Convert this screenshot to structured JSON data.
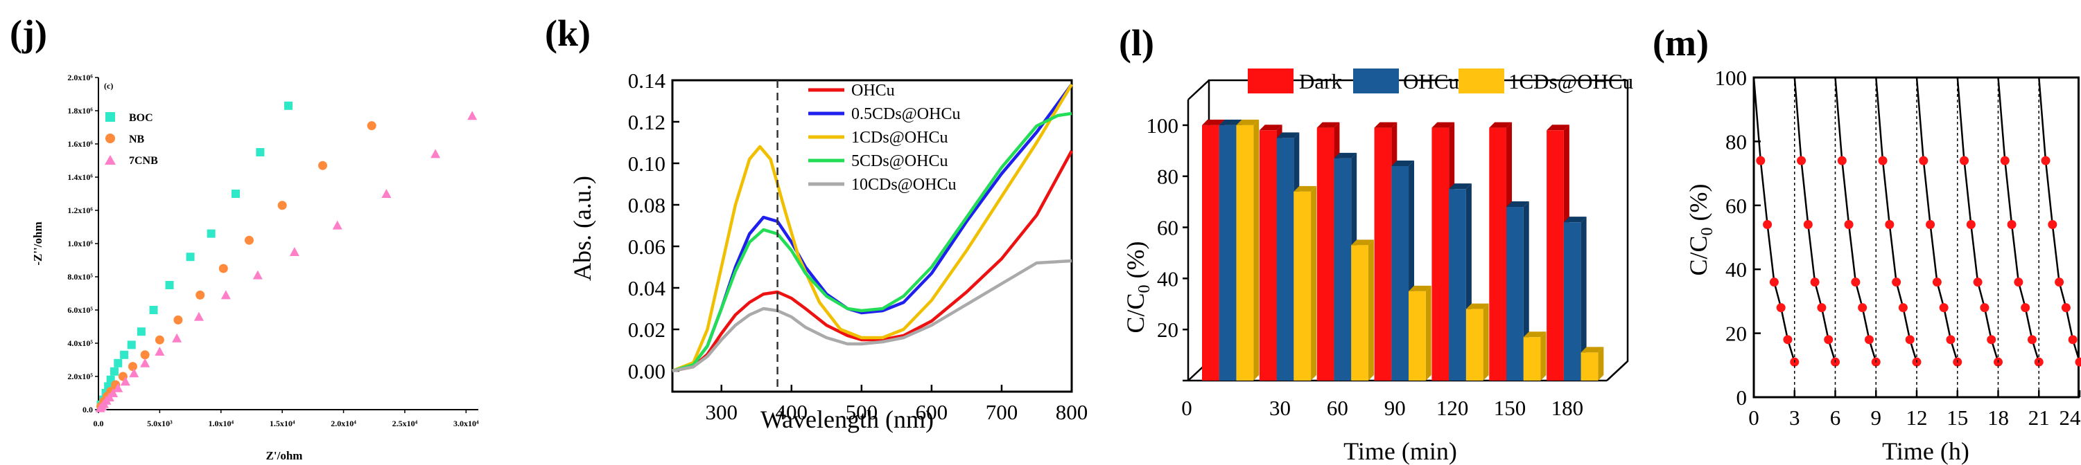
{
  "colors": {
    "cyan": "#2ee8c8",
    "orange": "#ff8a3c",
    "pink": "#ff7ec8",
    "red": "#ee1111",
    "blue": "#2020ee",
    "gold": "#f0c000",
    "green": "#22dd55",
    "gray": "#aaaaaa",
    "darkblue": "#1a5a96",
    "yellow": "#ffc20e",
    "bar_red": "#ff1010",
    "marker_red": "#ff1515"
  },
  "chart_data": [
    {
      "id": "j",
      "panel_label": "(j)",
      "inner_label": "(c)",
      "type": "scatter",
      "xlabel": "Z'/ohm",
      "ylabel": "-Z''/ohm",
      "xlim": [
        0,
        31000
      ],
      "ylim": [
        0,
        2000000
      ],
      "x_tick_values": [
        0,
        5000,
        10000,
        15000,
        20000,
        25000,
        30000
      ],
      "x_tick_labels": [
        "0.0",
        "5.0x10³",
        "1.0x10⁴",
        "1.5x10⁴",
        "2.0x10⁴",
        "2.5x10⁴",
        "3.0x10⁴"
      ],
      "y_tick_values": [
        0,
        200000,
        400000,
        600000,
        800000,
        1000000,
        1200000,
        1400000,
        1600000,
        1800000,
        2000000
      ],
      "y_tick_labels": [
        "0.0",
        "2.0x10⁵",
        "4.0x10⁵",
        "6.0x10⁵",
        "8.0x10⁵",
        "1.0x10⁶",
        "1.2x10⁶",
        "1.4x10⁶",
        "1.6x10⁶",
        "1.8x10⁶",
        "2.0x10⁶"
      ],
      "series": [
        {
          "name": "BOC",
          "color": "cyan",
          "marker": "square",
          "x": [
            200,
            400,
            600,
            800,
            1000,
            1300,
            1600,
            2100,
            2700,
            3500,
            4500,
            5800,
            7500,
            9200,
            11200,
            13200,
            15500
          ],
          "y": [
            30000,
            60000,
            100000,
            140000,
            180000,
            230000,
            280000,
            330000,
            390000,
            470000,
            600000,
            750000,
            920000,
            1060000,
            1300000,
            1550000,
            1830000
          ]
        },
        {
          "name": "NB",
          "color": "orange",
          "marker": "circle",
          "x": [
            200,
            450,
            700,
            1000,
            1400,
            2000,
            2800,
            3800,
            5000,
            6500,
            8300,
            10200,
            12300,
            15000,
            18300,
            22300
          ],
          "y": [
            20000,
            50000,
            80000,
            110000,
            150000,
            200000,
            260000,
            330000,
            420000,
            540000,
            690000,
            850000,
            1020000,
            1230000,
            1470000,
            1710000
          ]
        },
        {
          "name": "7CNB",
          "color": "pink",
          "marker": "triangle",
          "x": [
            150,
            300,
            450,
            650,
            900,
            1200,
            1600,
            2200,
            2900,
            3800,
            5000,
            6400,
            8200,
            10400,
            13000,
            16000,
            19500,
            23500,
            27500,
            30500
          ],
          "y": [
            10000,
            20000,
            35000,
            55000,
            75000,
            100000,
            130000,
            170000,
            220000,
            280000,
            350000,
            430000,
            560000,
            690000,
            810000,
            950000,
            1110000,
            1300000,
            1540000,
            1770000
          ]
        }
      ]
    },
    {
      "id": "k",
      "panel_label": "(k)",
      "type": "line",
      "xlabel": "Wavelength (nm)",
      "ylabel": "Abs. (a.u.)",
      "xlim": [
        230,
        800
      ],
      "ylim": [
        -0.01,
        0.14
      ],
      "x_ticks": [
        300,
        400,
        500,
        600,
        700,
        800
      ],
      "y_ticks": [
        0.0,
        0.02,
        0.04,
        0.06,
        0.08,
        0.1,
        0.12,
        0.14
      ],
      "y_tick_labels": [
        "0.00",
        "0.02",
        "0.04",
        "0.06",
        "0.08",
        "0.10",
        "0.12",
        "0.14"
      ],
      "vline_x": 380,
      "series": [
        {
          "name": "OHCu",
          "color": "red",
          "x": [
            230,
            260,
            280,
            300,
            320,
            340,
            360,
            380,
            400,
            420,
            450,
            480,
            500,
            530,
            560,
            600,
            650,
            700,
            750,
            800
          ],
          "y": [
            0.0,
            0.002,
            0.008,
            0.018,
            0.027,
            0.033,
            0.037,
            0.038,
            0.035,
            0.03,
            0.022,
            0.017,
            0.015,
            0.015,
            0.017,
            0.024,
            0.038,
            0.054,
            0.075,
            0.106
          ]
        },
        {
          "name": "0.5CDs@OHCu",
          "color": "blue",
          "x": [
            230,
            260,
            280,
            300,
            320,
            340,
            360,
            380,
            400,
            420,
            450,
            480,
            500,
            530,
            560,
            600,
            650,
            700,
            750,
            800
          ],
          "y": [
            0.0,
            0.003,
            0.012,
            0.03,
            0.05,
            0.066,
            0.074,
            0.072,
            0.062,
            0.05,
            0.037,
            0.03,
            0.028,
            0.029,
            0.033,
            0.047,
            0.072,
            0.095,
            0.115,
            0.138
          ]
        },
        {
          "name": "1CDs@OHCu",
          "color": "gold",
          "x": [
            230,
            260,
            280,
            300,
            320,
            340,
            355,
            370,
            390,
            410,
            440,
            470,
            500,
            530,
            560,
            600,
            650,
            700,
            750,
            800
          ],
          "y": [
            0.0,
            0.004,
            0.02,
            0.05,
            0.08,
            0.102,
            0.108,
            0.102,
            0.078,
            0.055,
            0.033,
            0.02,
            0.016,
            0.016,
            0.02,
            0.034,
            0.058,
            0.084,
            0.11,
            0.138
          ]
        },
        {
          "name": "5CDs@OHCu",
          "color": "green",
          "x": [
            230,
            260,
            280,
            300,
            320,
            340,
            360,
            380,
            400,
            420,
            450,
            480,
            500,
            530,
            560,
            600,
            650,
            700,
            750,
            780,
            800
          ],
          "y": [
            0.0,
            0.003,
            0.012,
            0.03,
            0.048,
            0.062,
            0.068,
            0.066,
            0.058,
            0.047,
            0.036,
            0.03,
            0.029,
            0.03,
            0.036,
            0.05,
            0.074,
            0.098,
            0.118,
            0.123,
            0.124
          ]
        },
        {
          "name": "10CDs@OHCu",
          "color": "gray",
          "x": [
            230,
            260,
            280,
            300,
            320,
            340,
            360,
            380,
            400,
            420,
            450,
            480,
            500,
            530,
            560,
            600,
            650,
            700,
            750,
            800
          ],
          "y": [
            0.0,
            0.002,
            0.007,
            0.015,
            0.022,
            0.027,
            0.03,
            0.029,
            0.026,
            0.021,
            0.016,
            0.013,
            0.013,
            0.014,
            0.016,
            0.022,
            0.032,
            0.042,
            0.052,
            0.053
          ]
        }
      ]
    },
    {
      "id": "l",
      "panel_label": "(l)",
      "type": "bar",
      "xlabel": "Time (min)",
      "ylabel": "C/C0 (%)",
      "ylabel_main": "C/C",
      "ylabel_sub": "0",
      "ylabel_tail": " (%)",
      "ylim": [
        0,
        110
      ],
      "y_ticks": [
        0,
        20,
        40,
        60,
        80,
        100
      ],
      "categories": [
        "0",
        "30",
        "60",
        "90",
        "120",
        "150",
        "180"
      ],
      "series": [
        {
          "name": "Dark",
          "color": "bar_red",
          "values": [
            100,
            98,
            99,
            99,
            99,
            99,
            98
          ]
        },
        {
          "name": "OHCu",
          "color": "darkblue",
          "values": [
            100,
            95,
            87,
            84,
            75,
            68,
            62
          ]
        },
        {
          "name": "1CDs@OHCu",
          "color": "yellow",
          "values": [
            100,
            74,
            53,
            35,
            28,
            17,
            11
          ]
        }
      ]
    },
    {
      "id": "m",
      "panel_label": "(m)",
      "type": "line",
      "xlabel": "Time (h)",
      "ylabel": "C/C0 (%)",
      "ylabel_main": "C/C",
      "ylabel_sub": "0",
      "ylabel_tail": " (%)",
      "xlim": [
        0,
        24
      ],
      "ylim": [
        0,
        100
      ],
      "x_ticks": [
        0,
        3,
        6,
        9,
        12,
        15,
        18,
        21,
        24
      ],
      "y_ticks": [
        0,
        20,
        40,
        60,
        80,
        100
      ],
      "cycle_hours": 3,
      "cycles": 8,
      "cycle_profile": {
        "t": [
          0,
          0.5,
          1.0,
          1.5,
          2.0,
          2.5,
          3.0
        ],
        "values": [
          100,
          74,
          54,
          36,
          28,
          18,
          11
        ]
      }
    }
  ]
}
